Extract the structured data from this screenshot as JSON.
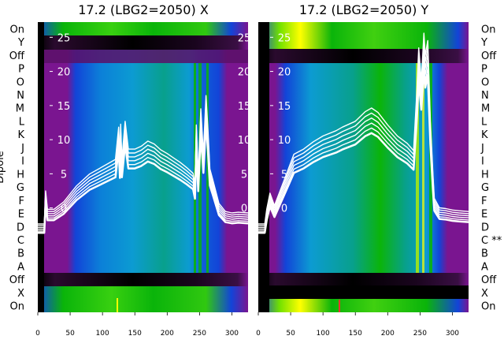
{
  "chart_data": [
    {
      "type": "heatmap",
      "title": "17.2 (LBG2=2050) X",
      "ylabel": "Dipole",
      "row_labels": [
        "On",
        "X",
        "Off",
        "A",
        "B",
        "C",
        "D",
        "E",
        "F",
        "G",
        "H",
        "I",
        "J",
        "K",
        "L",
        "M",
        "N",
        "O",
        "P",
        "Off",
        "Y",
        "On"
      ],
      "row_marks": {},
      "xlim": [
        0,
        325
      ],
      "xticks": [
        0,
        50,
        100,
        150,
        200,
        250,
        300
      ],
      "overlay_yticks": [
        0,
        5,
        10,
        15,
        20,
        25
      ],
      "overlay_ylim": [
        -4.2,
        27
      ],
      "line_count": 6,
      "line_color": "#ffffff",
      "colormap": "black-purple-blue-green-yellow",
      "profile": {
        "x": [
          0,
          10,
          12,
          15,
          25,
          40,
          60,
          80,
          100,
          120,
          125,
          127,
          128,
          130,
          135,
          140,
          150,
          160,
          170,
          180,
          190,
          200,
          210,
          220,
          230,
          240,
          243,
          245,
          248,
          252,
          256,
          260,
          263,
          266,
          270,
          280,
          290,
          300,
          310,
          325
        ],
        "y": [
          -3,
          -3,
          1.5,
          -1,
          -1,
          0,
          2.2,
          3.8,
          4.8,
          5.8,
          10.2,
          5.7,
          10.6,
          5.8,
          11,
          7.2,
          7.2,
          7.6,
          8.3,
          7.9,
          7.1,
          6.6,
          6,
          5.4,
          4.7,
          3.9,
          2.4,
          10.5,
          3.6,
          12.7,
          6.5,
          14.5,
          9.8,
          4.5,
          3.2,
          -0.2,
          -1.3,
          -1.5,
          -1.4,
          -1.5
        ]
      }
    },
    {
      "type": "heatmap",
      "title": "17.2 (LBG2=2050) Y",
      "ylabel": "",
      "row_labels": [
        "On",
        "X",
        "Off",
        "A",
        "B",
        "C",
        "D",
        "E",
        "F",
        "G",
        "H",
        "I",
        "J",
        "K",
        "L",
        "M",
        "N",
        "O",
        "P",
        "Off",
        "Y",
        "On"
      ],
      "row_marks": {
        "5": "**"
      },
      "xlim": [
        0,
        325
      ],
      "xticks": [
        0,
        50,
        100,
        150,
        200,
        250,
        300
      ],
      "overlay_yticks": [
        0,
        5,
        10,
        15,
        20,
        25
      ],
      "overlay_ylim": [
        -4.2,
        27
      ],
      "line_count": 6,
      "line_color": "#ffffff",
      "colormap": "black-purple-blue-green-yellow",
      "profile": {
        "x": [
          0,
          10,
          13,
          18,
          25,
          40,
          55,
          70,
          85,
          100,
          120,
          130,
          150,
          165,
          175,
          185,
          200,
          215,
          230,
          240,
          245,
          248,
          252,
          256,
          258,
          262,
          266,
          270,
          272,
          280,
          290,
          300,
          310,
          325
        ],
        "y": [
          -3,
          -3,
          -1,
          1.2,
          -0.5,
          3,
          6.5,
          7.2,
          8.2,
          9,
          9.7,
          10.2,
          11,
          12.3,
          12.8,
          12.2,
          10.5,
          9,
          8,
          7,
          15,
          21,
          16.5,
          23,
          20,
          22,
          11,
          3.7,
          0.5,
          -0.8,
          -0.9,
          -1.1,
          -1.2,
          -1.3
        ]
      }
    }
  ],
  "colors": {
    "black": "#000000",
    "purple": "#7a1590",
    "blue": "#1244d8",
    "light_blue": "#0c9bd2",
    "teal": "#08a08c",
    "green": "#0ab40a",
    "yellow_green": "#b8f000",
    "yellow": "#ffff00",
    "overlay_line": "#ffffff"
  }
}
